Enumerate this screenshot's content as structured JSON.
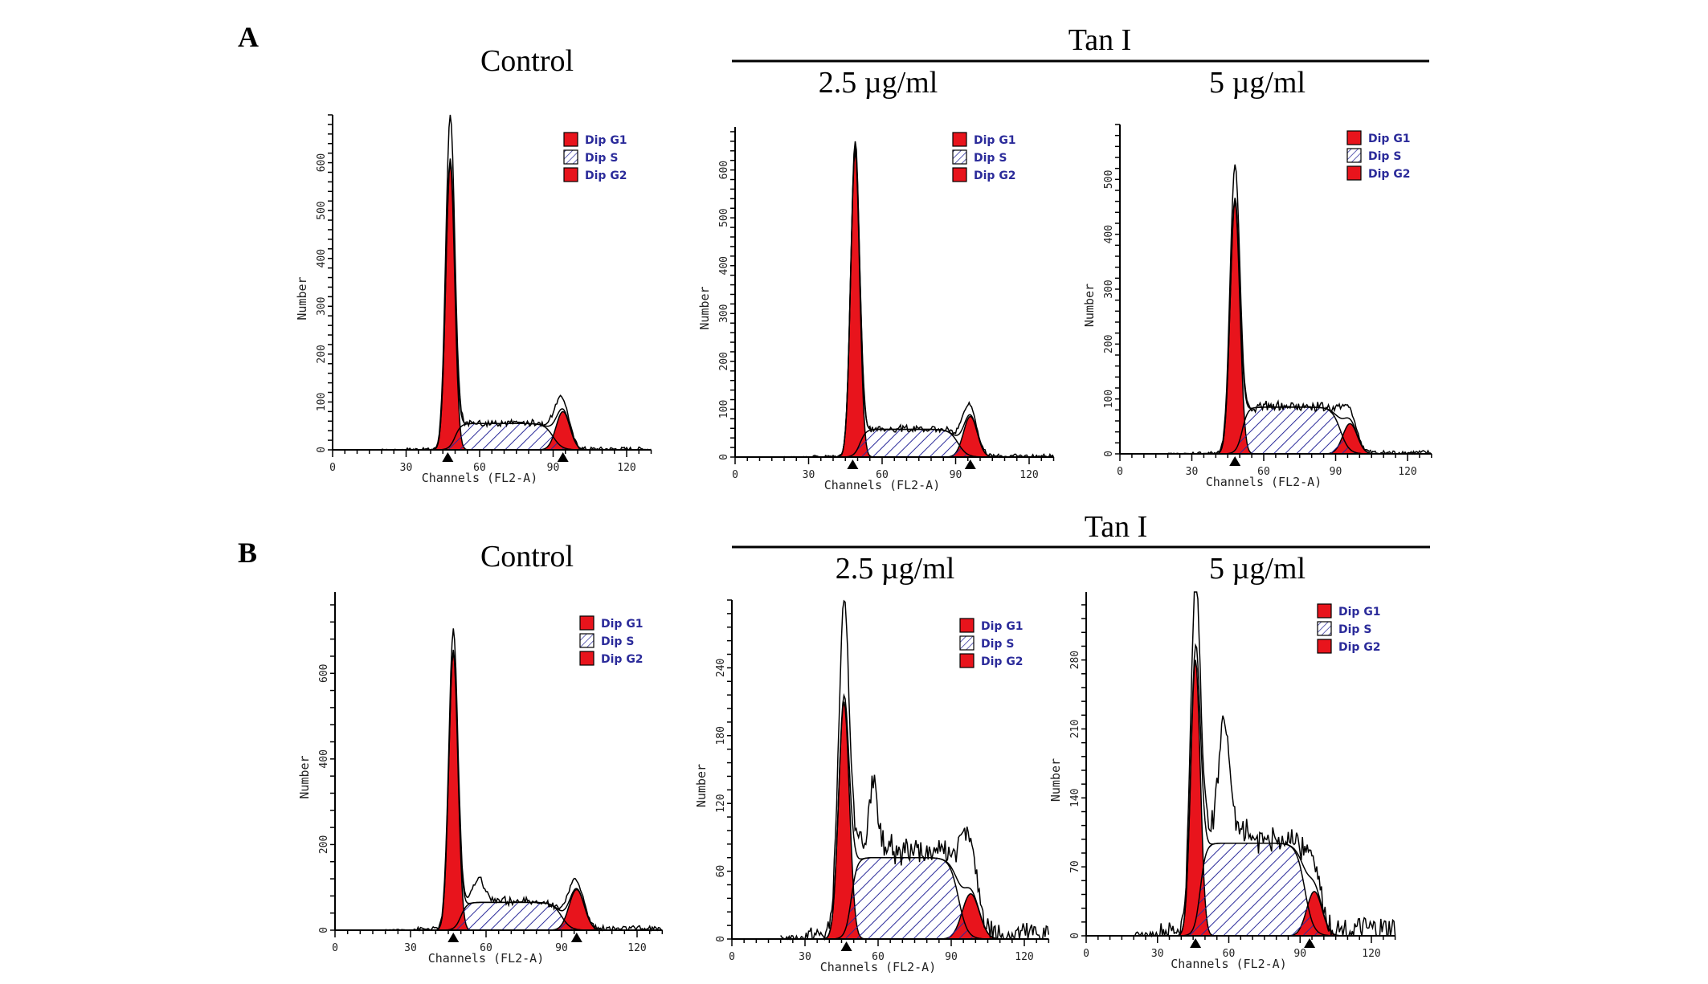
{
  "figure": {
    "panel_A": {
      "letter": "A",
      "control_title": "Control",
      "group_title": "Tan I",
      "dose1": "2.5 µg/ml",
      "dose2": "5 µg/ml"
    },
    "panel_B": {
      "letter": "B",
      "control_title": "Control",
      "group_title": "Tan I",
      "dose1": "2.5 µg/ml",
      "dose2": "5 µg/ml"
    }
  },
  "colors": {
    "g1": "#e8141c",
    "g2": "#e8141c",
    "s_hatch": "#2b2b9a",
    "line": "#000000"
  },
  "chart_data": [
    {
      "id": "A-control",
      "type": "area",
      "title": "Control",
      "xlabel": "Channels (FL2-A)",
      "ylabel": "Number",
      "legend": [
        "Dip G1",
        "Dip S",
        "Dip G2"
      ],
      "legend_position": "top-right",
      "xlim": [
        0,
        130
      ],
      "xticks": [
        0,
        30,
        60,
        90,
        120
      ],
      "ylim": [
        0,
        700
      ],
      "yticks": [
        0,
        100,
        200,
        300,
        400,
        500,
        600
      ],
      "yminor": 20,
      "g1": {
        "channel": 48,
        "peak": 600,
        "sd": 1.8
      },
      "s": {
        "level": 55,
        "start": 50,
        "end": 90
      },
      "g2": {
        "channel": 94,
        "peak": 80,
        "sd": 2.8
      },
      "observed": {
        "g1_peak": 690,
        "g2_peak": 135,
        "bumps": [],
        "debris": 6
      },
      "markers": [
        47,
        94
      ]
    },
    {
      "id": "A-2.5",
      "type": "area",
      "title": "2.5 µg/ml",
      "xlabel": "Channels (FL2-A)",
      "ylabel": "Number",
      "legend": [
        "Dip G1",
        "Dip S",
        "Dip G2"
      ],
      "legend_position": "top-right",
      "xlim": [
        0,
        130
      ],
      "xticks": [
        0,
        30,
        60,
        90,
        120
      ],
      "ylim": [
        0,
        690
      ],
      "yticks": [
        0,
        100,
        200,
        300,
        400,
        500,
        600
      ],
      "yminor": 20,
      "g1": {
        "channel": 49,
        "peak": 640,
        "sd": 1.8
      },
      "s": {
        "level": 58,
        "start": 51,
        "end": 91
      },
      "g2": {
        "channel": 96,
        "peak": 85,
        "sd": 2.8
      },
      "observed": {
        "g1_peak": 650,
        "g2_peak": 140,
        "bumps": [],
        "debris": 6
      },
      "markers": [
        48,
        96
      ]
    },
    {
      "id": "A-5",
      "type": "area",
      "title": "5 µg/ml",
      "xlabel": "Channels (FL2-A)",
      "ylabel": "Number",
      "legend": [
        "Dip G1",
        "Dip S",
        "Dip G2"
      ],
      "legend_position": "top-right",
      "xlim": [
        0,
        130
      ],
      "xticks": [
        0,
        30,
        60,
        90,
        120
      ],
      "ylim": [
        0,
        600
      ],
      "yticks": [
        0,
        100,
        200,
        300,
        400,
        500
      ],
      "yminor": 20,
      "g1": {
        "channel": 48,
        "peak": 460,
        "sd": 2.0
      },
      "s": {
        "level": 85,
        "start": 51,
        "end": 92
      },
      "g2": {
        "channel": 96,
        "peak": 55,
        "sd": 3.0
      },
      "observed": {
        "g1_peak": 520,
        "g2_peak": 120,
        "bumps": [],
        "debris": 6
      },
      "markers": [
        48
      ]
    },
    {
      "id": "B-control",
      "type": "area",
      "title": "Control",
      "xlabel": "Channels (FL2-A)",
      "ylabel": "Number",
      "legend": [
        "Dip G1",
        "Dip S",
        "Dip G2"
      ],
      "legend_position": "top-right",
      "xlim": [
        0,
        130
      ],
      "xticks": [
        0,
        30,
        60,
        90,
        120
      ],
      "ylim": [
        0,
        790
      ],
      "yticks": [
        0,
        200,
        400,
        600
      ],
      "yminor": 40,
      "g1": {
        "channel": 47,
        "peak": 650,
        "sd": 1.8
      },
      "s": {
        "level": 65,
        "start": 50,
        "end": 90
      },
      "g2": {
        "channel": 96,
        "peak": 95,
        "sd": 3.0
      },
      "observed": {
        "g1_peak": 690,
        "g2_peak": 150,
        "bumps": [
          {
            "channel": 57,
            "height": 40,
            "sd": 2
          }
        ],
        "debris": 10
      },
      "markers": [
        47,
        96
      ]
    },
    {
      "id": "B-2.5",
      "type": "area",
      "title": "2.5 µg/ml",
      "xlabel": "Channels (FL2-A)",
      "ylabel": "Number",
      "legend": [
        "Dip G1",
        "Dip S",
        "Dip G2"
      ],
      "legend_position": "top-right",
      "xlim": [
        0,
        130
      ],
      "xticks": [
        0,
        30,
        60,
        90,
        120
      ],
      "ylim": [
        0,
        300
      ],
      "yticks": [
        0,
        60,
        120,
        180,
        240
      ],
      "yminor": 12,
      "g1": {
        "channel": 46,
        "peak": 210,
        "sd": 2.2
      },
      "s": {
        "level": 72,
        "start": 49,
        "end": 93
      },
      "g2": {
        "channel": 98,
        "peak": 40,
        "sd": 3.5
      },
      "observed": {
        "g1_peak": 284,
        "g2_peak": 120,
        "bumps": [
          {
            "channel": 58,
            "height": 50,
            "sd": 1.5
          }
        ],
        "debris": 15
      },
      "markers": [
        47
      ]
    },
    {
      "id": "B-5",
      "type": "area",
      "title": "5 µg/ml",
      "xlabel": "Channels (FL2-A)",
      "ylabel": "Number",
      "legend": [
        "Dip G1",
        "Dip S",
        "Dip G2"
      ],
      "legend_position": "top-right",
      "xlim": [
        0,
        130
      ],
      "xticks": [
        0,
        30,
        60,
        90,
        120
      ],
      "ylim": [
        0,
        349
      ],
      "yticks": [
        0,
        70,
        140,
        210,
        280
      ],
      "yminor": 14,
      "g1": {
        "channel": 46,
        "peak": 280,
        "sd": 2.0
      },
      "s": {
        "level": 94,
        "start": 48,
        "end": 92
      },
      "g2": {
        "channel": 96,
        "peak": 45,
        "sd": 3.2
      },
      "observed": {
        "g1_peak": 345,
        "g2_peak": 115,
        "bumps": [
          {
            "channel": 58,
            "height": 90,
            "sd": 2.2
          }
        ],
        "debris": 18
      },
      "markers": [
        46,
        94
      ]
    }
  ]
}
